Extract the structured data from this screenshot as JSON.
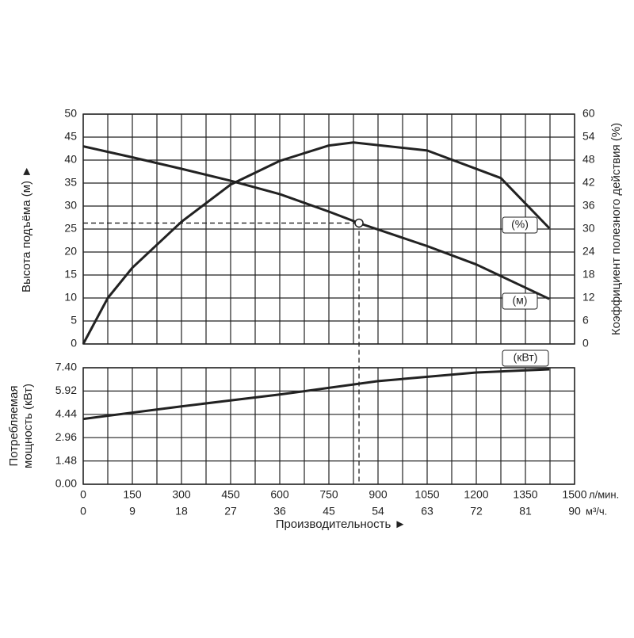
{
  "chart_data": [
    {
      "type": "line",
      "ylabel": "Высота подъёма (м) ►",
      "y2label": "Коэффициент полезного действия (%)",
      "xlim": [
        0,
        1500
      ],
      "xticks": [
        0,
        150,
        300,
        450,
        600,
        750,
        900,
        1050,
        1200,
        1350,
        1500
      ],
      "ylim": [
        0,
        50
      ],
      "yticks": [
        0,
        5,
        10,
        15,
        20,
        25,
        30,
        35,
        40,
        45,
        50
      ],
      "y2lim": [
        0,
        60
      ],
      "y2ticks": [
        0,
        6,
        12,
        18,
        24,
        30,
        36,
        42,
        48,
        54,
        60
      ],
      "grid": true,
      "series": [
        {
          "name": "(м)",
          "color": "#222222",
          "x": [
            0,
            150,
            300,
            450,
            600,
            750,
            842,
            1050,
            1200,
            1423
          ],
          "values": [
            43,
            40.6,
            38.1,
            35.5,
            32.6,
            28.8,
            26.3,
            21.3,
            17.3,
            9.8
          ]
        },
        {
          "name": "(%)",
          "color": "#222222",
          "axis": "y2",
          "x": [
            0,
            75,
            150,
            300,
            450,
            600,
            750,
            825,
            1050,
            1275,
            1423
          ],
          "values": [
            0,
            12,
            19.9,
            31.9,
            41.6,
            47.8,
            51.8,
            52.6,
            50.5,
            43.3,
            30.2
          ]
        }
      ],
      "operating_point": {
        "x": 842,
        "y": 26.3
      }
    },
    {
      "type": "line",
      "ylabel": [
        "Потребляемая",
        "мощность (кВт)"
      ],
      "xlabel": "Производительность ►",
      "xunit": "л/мин.",
      "x2unit": "м³/ч.",
      "xlim": [
        0,
        1500
      ],
      "xticks": [
        0,
        150,
        300,
        450,
        600,
        750,
        900,
        1050,
        1200,
        1350,
        1500
      ],
      "x2lim": [
        0,
        90
      ],
      "x2ticks": [
        0,
        9,
        18,
        27,
        36,
        45,
        54,
        63,
        72,
        81,
        90
      ],
      "ylim": [
        0,
        7.4
      ],
      "yticks": [
        {
          "value": 0,
          "label": "0.00"
        },
        1.48,
        2.96,
        4.44,
        5.92,
        {
          "value": 7.4,
          "label": "7.40"
        }
      ],
      "grid": true,
      "series": [
        {
          "name": "(кВт)",
          "color": "#222222",
          "x": [
            0,
            300,
            600,
            900,
            1200,
            1423
          ],
          "values": [
            4.15,
            4.95,
            5.7,
            6.55,
            7.1,
            7.3
          ]
        }
      ]
    }
  ]
}
